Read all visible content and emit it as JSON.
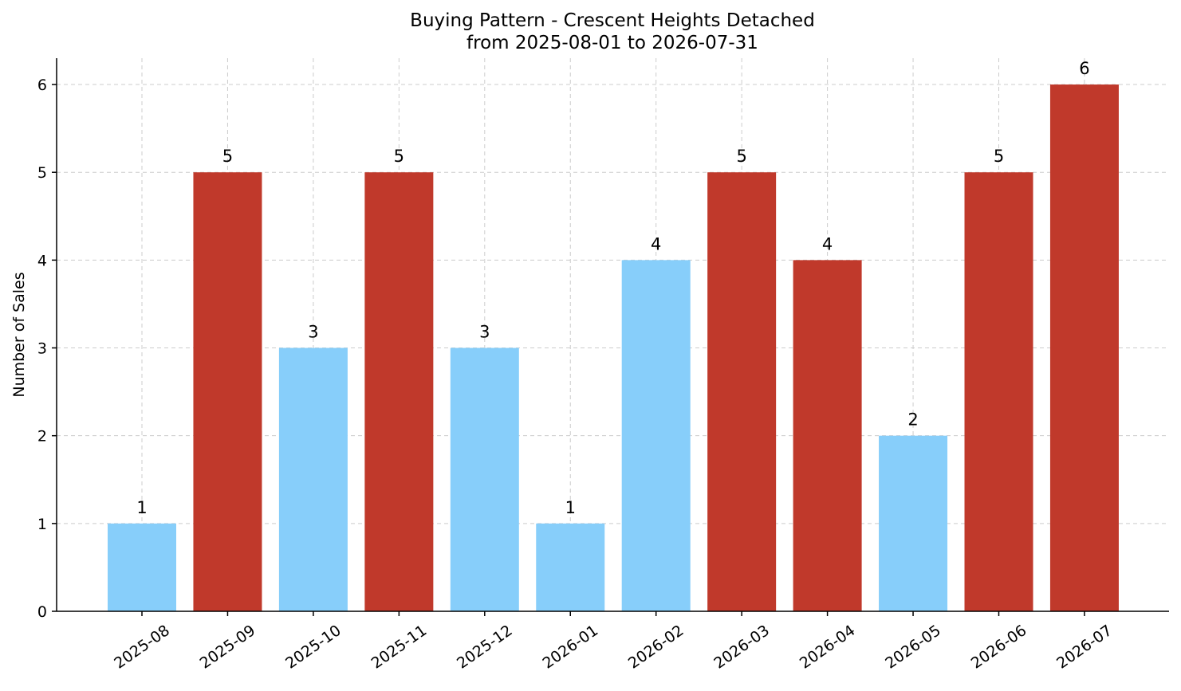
{
  "chart_data": {
    "type": "bar",
    "title": "Buying Pattern - Crescent Heights Detached",
    "subtitle": "from 2025-08-01 to 2026-07-31",
    "xlabel": "",
    "ylabel": "Number of Sales",
    "categories": [
      "2025-08",
      "2025-09",
      "2025-10",
      "2025-11",
      "2025-12",
      "2026-01",
      "2026-02",
      "2026-03",
      "2026-04",
      "2026-05",
      "2026-06",
      "2026-07"
    ],
    "values": [
      1,
      5,
      3,
      5,
      3,
      1,
      4,
      5,
      4,
      2,
      5,
      6
    ],
    "bar_colors": [
      "#87CEFA",
      "#C0392B",
      "#87CEFA",
      "#C0392B",
      "#87CEFA",
      "#87CEFA",
      "#87CEFA",
      "#C0392B",
      "#C0392B",
      "#87CEFA",
      "#C0392B",
      "#C0392B"
    ],
    "ylim": [
      0,
      6.3
    ],
    "yticks": [
      0,
      1,
      2,
      3,
      4,
      5,
      6
    ],
    "grid": true,
    "legend": "none"
  }
}
